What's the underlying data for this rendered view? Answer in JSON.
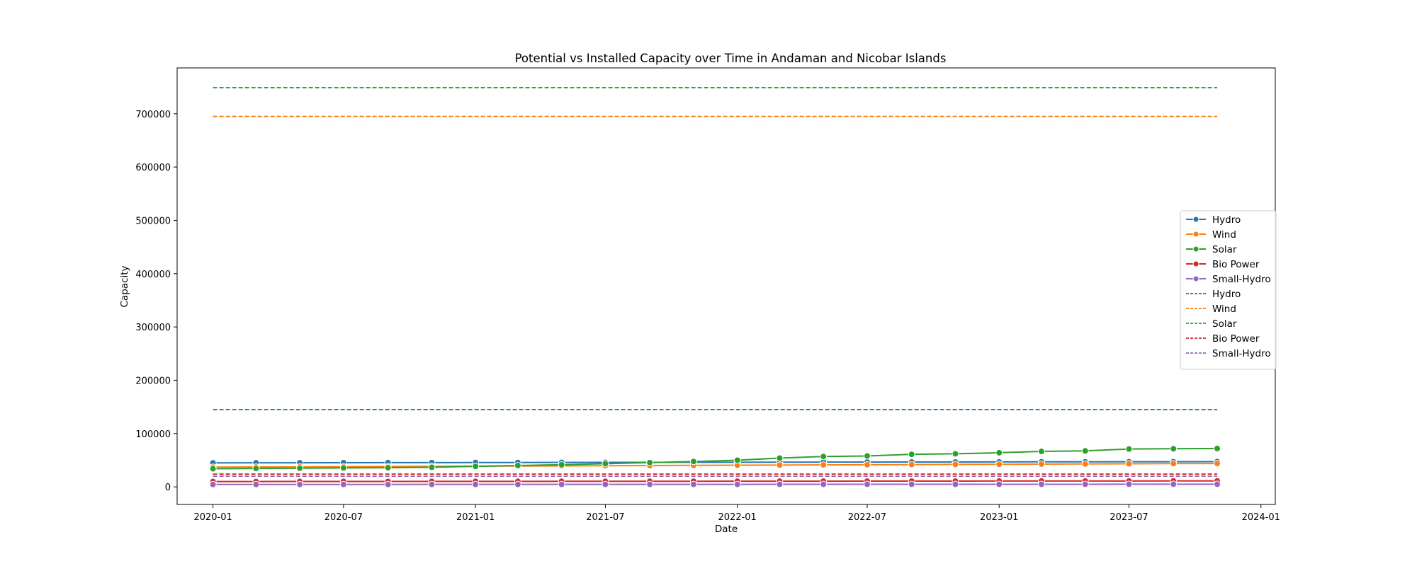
{
  "chart_data": {
    "type": "line",
    "title": "Potential vs Installed Capacity over Time in Andaman and Nicobar Islands",
    "xlabel": "Date",
    "ylabel": "Capacity",
    "x_axis_type": "date",
    "xlim": [
      "2019-11-12",
      "2024-01-21"
    ],
    "ylim": [
      -33000,
      786000
    ],
    "x_ticks": [
      {
        "date": "2020-01-01",
        "label": "2020-01"
      },
      {
        "date": "2020-07-01",
        "label": "2020-07"
      },
      {
        "date": "2021-01-01",
        "label": "2021-01"
      },
      {
        "date": "2021-07-01",
        "label": "2021-07"
      },
      {
        "date": "2022-01-01",
        "label": "2022-01"
      },
      {
        "date": "2022-07-01",
        "label": "2022-07"
      },
      {
        "date": "2023-01-01",
        "label": "2023-01"
      },
      {
        "date": "2023-07-01",
        "label": "2023-07"
      },
      {
        "date": "2024-01-01",
        "label": "2024-01"
      }
    ],
    "y_ticks": [
      0,
      100000,
      200000,
      300000,
      400000,
      500000,
      600000,
      700000
    ],
    "grid": false,
    "legend_position": "center-right",
    "x": [
      "2020-01-01",
      "2020-03-01",
      "2020-05-01",
      "2020-07-01",
      "2020-09-01",
      "2020-11-01",
      "2021-01-01",
      "2021-03-01",
      "2021-05-01",
      "2021-07-01",
      "2021-09-01",
      "2021-11-01",
      "2022-01-01",
      "2022-03-01",
      "2022-05-01",
      "2022-07-01",
      "2022-09-01",
      "2022-11-01",
      "2023-01-01",
      "2023-03-01",
      "2023-05-01",
      "2023-07-01",
      "2023-09-01",
      "2023-11-01"
    ],
    "installed_series": [
      {
        "name": "Hydro",
        "color": "#1f77b4",
        "values": [
          45000,
          45100,
          45200,
          45300,
          45400,
          45500,
          45600,
          45700,
          45800,
          45900,
          46000,
          46100,
          46200,
          46300,
          46400,
          46500,
          46600,
          46700,
          46800,
          46900,
          47000,
          47100,
          47200,
          47300
        ]
      },
      {
        "name": "Wind",
        "color": "#ff7f0e",
        "values": [
          37000,
          37300,
          37600,
          37900,
          38200,
          38500,
          38800,
          39100,
          39400,
          39700,
          40000,
          40300,
          40600,
          40900,
          41200,
          41500,
          41800,
          42100,
          42400,
          42700,
          43000,
          43300,
          43600,
          43900
        ]
      },
      {
        "name": "Solar",
        "color": "#2ca02c",
        "values": [
          34000,
          34500,
          35000,
          35500,
          36000,
          36700,
          38500,
          40000,
          41500,
          43500,
          45500,
          47500,
          50000,
          54000,
          57000,
          58000,
          61000,
          62000,
          64000,
          66500,
          67500,
          71000,
          71500,
          72000
        ]
      },
      {
        "name": "Bio Power",
        "color": "#d62728",
        "values": [
          10000,
          10050,
          10100,
          10150,
          10200,
          10250,
          10300,
          10350,
          10400,
          10450,
          10500,
          10550,
          10600,
          10650,
          10700,
          10750,
          10800,
          10850,
          10900,
          10950,
          11000,
          11050,
          11100,
          11150
        ]
      },
      {
        "name": "Small-Hydro",
        "color": "#9467bd",
        "values": [
          4500,
          4520,
          4540,
          4560,
          4580,
          4600,
          4620,
          4640,
          4660,
          4680,
          4700,
          4720,
          4740,
          4760,
          4780,
          4800,
          4820,
          4840,
          4860,
          4880,
          4900,
          4920,
          4940,
          4960
        ]
      }
    ],
    "potential_series": [
      {
        "name": "Hydro",
        "color": "#1f77b4",
        "value": 145000
      },
      {
        "name": "Wind",
        "color": "#ff7f0e",
        "value": 695000
      },
      {
        "name": "Solar",
        "color": "#2ca02c",
        "value": 749000
      },
      {
        "name": "Bio Power",
        "color": "#d62728",
        "value": 24000
      },
      {
        "name": "Small-Hydro",
        "color": "#9467bd",
        "value": 20000
      }
    ]
  }
}
